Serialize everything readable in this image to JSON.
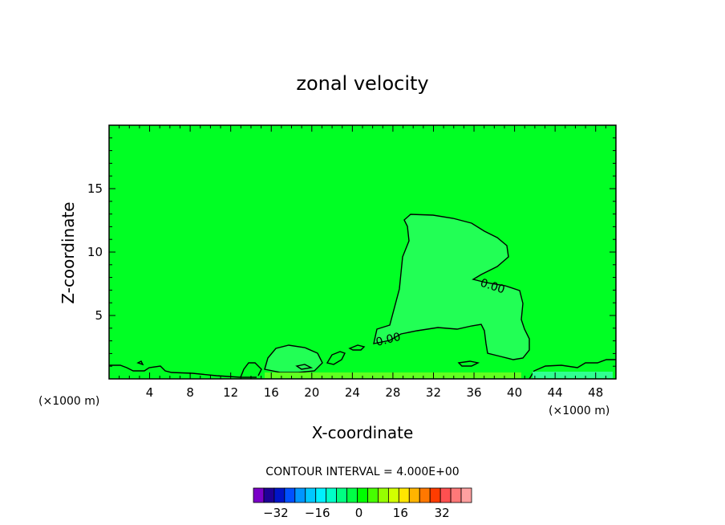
{
  "chart_data": {
    "type": "contour",
    "title": "zonal velocity",
    "xlabel": "X-coordinate",
    "ylabel": "Z-coordinate",
    "x_unit_label": "(×1000 m)",
    "xlim": [
      0,
      50
    ],
    "ylim": [
      0,
      20
    ],
    "x_ticks": [
      4,
      8,
      12,
      16,
      20,
      24,
      28,
      32,
      36,
      40,
      44,
      48
    ],
    "y_ticks": [
      5,
      10,
      15
    ],
    "contour_labels": [
      "0.00",
      "0.00"
    ],
    "contour_interval_text": "CONTOUR INTERVAL = 4.000E+00",
    "colorbar": {
      "ticks": [
        "−32",
        "−16",
        "0",
        "16",
        "32"
      ],
      "colors": [
        "#7a00c8",
        "#1e0096",
        "#0014c8",
        "#0050ff",
        "#0096ff",
        "#00c8ff",
        "#00f0ff",
        "#00ffc8",
        "#00ff82",
        "#00ff46",
        "#00ff00",
        "#46ff00",
        "#96ff00",
        "#d2ff00",
        "#ffe600",
        "#ffb400",
        "#ff7800",
        "#ff3c00",
        "#ff5050",
        "#ff7878",
        "#ffa0a0"
      ]
    },
    "background_color": "#00ff24",
    "region_color": "#20ff50"
  }
}
